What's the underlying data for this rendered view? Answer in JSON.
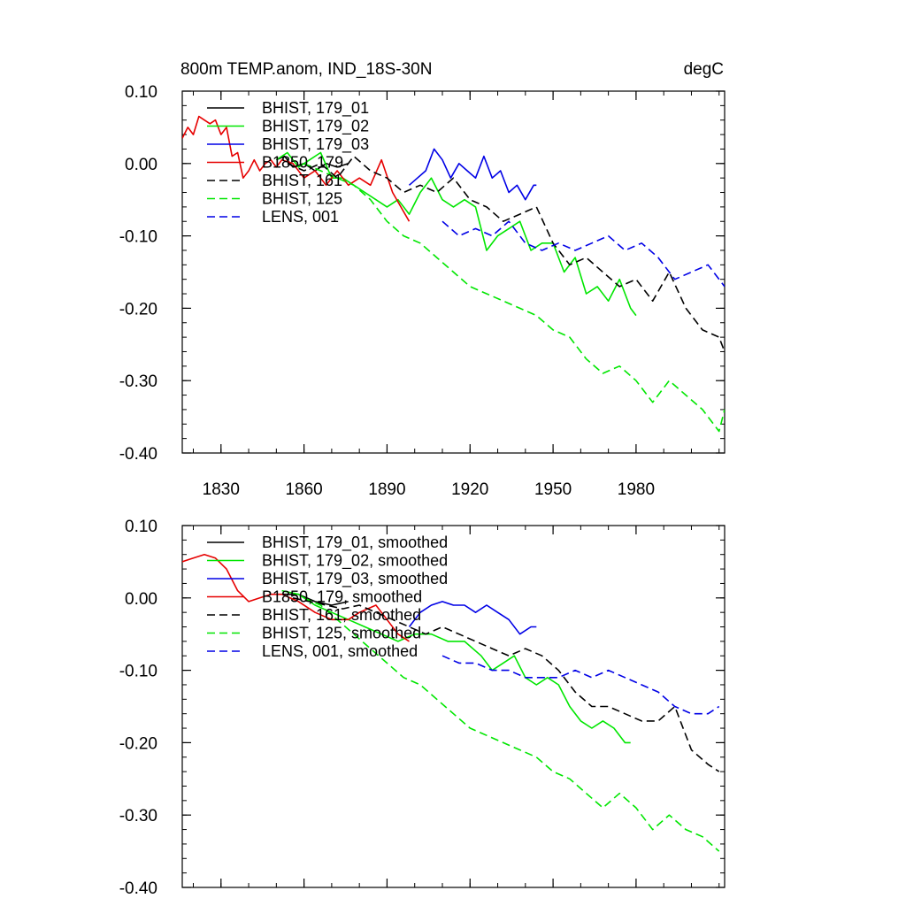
{
  "chart_data": [
    {
      "type": "line",
      "title": "800m TEMP.anom, IND_18S-30N",
      "units": "degC",
      "xlim": [
        1816,
        2012
      ],
      "ylim": [
        -0.4,
        0.1
      ],
      "yticks": [
        0.1,
        0.0,
        -0.1,
        -0.2,
        -0.3,
        -0.4
      ],
      "ytick_labels": [
        "0.10",
        "0.00",
        "-0.10",
        "-0.20",
        "-0.30",
        "-0.40"
      ],
      "xticks": [
        1830,
        1860,
        1890,
        1920,
        1950,
        1980
      ],
      "xtick_labels": [
        "1830",
        "1860",
        "1890",
        "1920",
        "1950",
        "1980"
      ],
      "grid": false,
      "legend_position": "top-left",
      "series": [
        {
          "name": "BHIST, 179_01",
          "color": "#000000",
          "dash": "solid",
          "x": [
            1850,
            1853,
            1856,
            1860,
            1864,
            1868,
            1872,
            1876
          ],
          "y": [
            0.005,
            0.01,
            -0.005,
            0.0,
            -0.01,
            0.0,
            -0.005,
            0.0
          ]
        },
        {
          "name": "BHIST, 179_02",
          "color": "#00e600",
          "dash": "solid",
          "x": [
            1850,
            1854,
            1858,
            1862,
            1866,
            1870,
            1874,
            1878,
            1882,
            1886,
            1890,
            1894,
            1898,
            1902,
            1906,
            1910,
            1914,
            1918,
            1922,
            1926,
            1930,
            1934,
            1938,
            1942,
            1946,
            1950,
            1954,
            1958,
            1962,
            1966,
            1970,
            1974,
            1978,
            1980
          ],
          "y": [
            0.005,
            0.015,
            -0.005,
            0.005,
            0.015,
            -0.02,
            -0.02,
            -0.03,
            -0.04,
            -0.05,
            -0.06,
            -0.05,
            -0.07,
            -0.04,
            -0.02,
            -0.05,
            -0.06,
            -0.05,
            -0.06,
            -0.12,
            -0.1,
            -0.09,
            -0.08,
            -0.12,
            -0.11,
            -0.11,
            -0.15,
            -0.13,
            -0.18,
            -0.17,
            -0.19,
            -0.16,
            -0.2,
            -0.21
          ]
        },
        {
          "name": "BHIST, 179_03",
          "color": "#0000e6",
          "dash": "solid",
          "x": [
            1898,
            1901,
            1904,
            1907,
            1910,
            1913,
            1916,
            1919,
            1922,
            1925,
            1928,
            1931,
            1934,
            1937,
            1940,
            1943,
            1944
          ],
          "y": [
            -0.03,
            -0.02,
            -0.01,
            0.02,
            0.005,
            -0.02,
            0.0,
            -0.01,
            -0.02,
            0.01,
            -0.02,
            -0.01,
            -0.04,
            -0.03,
            -0.05,
            -0.03,
            -0.03
          ]
        },
        {
          "name": "B1850, 179",
          "color": "#e60000",
          "dash": "solid",
          "x": [
            1816,
            1818,
            1820,
            1822,
            1824,
            1826,
            1828,
            1830,
            1832,
            1834,
            1836,
            1838,
            1840,
            1842,
            1844,
            1846,
            1848,
            1850,
            1852,
            1856,
            1860,
            1864,
            1868,
            1872,
            1876,
            1880,
            1884,
            1888,
            1892,
            1895,
            1898
          ],
          "y": [
            0.035,
            0.05,
            0.04,
            0.065,
            0.06,
            0.055,
            0.06,
            0.04,
            0.05,
            0.01,
            0.015,
            -0.02,
            -0.01,
            0.005,
            -0.01,
            0.0,
            0.005,
            -0.005,
            0.005,
            0.0,
            -0.02,
            -0.01,
            -0.03,
            -0.01,
            -0.03,
            -0.02,
            -0.03,
            0.005,
            -0.04,
            -0.06,
            -0.08
          ]
        },
        {
          "name": "BHIST, 161",
          "color": "#000000",
          "dash": "dashed",
          "x": [
            1854,
            1860,
            1866,
            1872,
            1878,
            1884,
            1890,
            1896,
            1902,
            1908,
            1914,
            1920,
            1926,
            1932,
            1938,
            1944,
            1950,
            1956,
            1962,
            1968,
            1974,
            1980,
            1986,
            1992,
            1998,
            2004,
            2010,
            2012
          ],
          "y": [
            0.0,
            -0.01,
            0.0,
            -0.02,
            0.01,
            -0.01,
            -0.02,
            -0.04,
            -0.03,
            -0.04,
            -0.02,
            -0.05,
            -0.06,
            -0.08,
            -0.07,
            -0.06,
            -0.11,
            -0.14,
            -0.13,
            -0.15,
            -0.17,
            -0.16,
            -0.19,
            -0.15,
            -0.2,
            -0.23,
            -0.24,
            -0.26
          ]
        },
        {
          "name": "BHIST, 125",
          "color": "#00e600",
          "dash": "dashed",
          "x": [
            1860,
            1866,
            1872,
            1878,
            1884,
            1890,
            1896,
            1902,
            1908,
            1914,
            1920,
            1926,
            1932,
            1938,
            1944,
            1950,
            1956,
            1962,
            1968,
            1974,
            1980,
            1986,
            1992,
            1998,
            2004,
            2010,
            2012
          ],
          "y": [
            0.0,
            -0.01,
            -0.02,
            -0.03,
            -0.05,
            -0.08,
            -0.1,
            -0.11,
            -0.13,
            -0.15,
            -0.17,
            -0.18,
            -0.19,
            -0.2,
            -0.21,
            -0.23,
            -0.24,
            -0.27,
            -0.29,
            -0.28,
            -0.3,
            -0.33,
            -0.3,
            -0.32,
            -0.34,
            -0.37,
            -0.34
          ]
        },
        {
          "name": "LENS, 001",
          "color": "#0000e6",
          "dash": "dashed",
          "x": [
            1910,
            1916,
            1922,
            1928,
            1934,
            1940,
            1946,
            1952,
            1958,
            1964,
            1970,
            1976,
            1982,
            1988,
            1994,
            2000,
            2006,
            2012
          ],
          "y": [
            -0.08,
            -0.1,
            -0.09,
            -0.1,
            -0.08,
            -0.11,
            -0.12,
            -0.11,
            -0.12,
            -0.11,
            -0.1,
            -0.12,
            -0.11,
            -0.13,
            -0.16,
            -0.15,
            -0.14,
            -0.17
          ]
        }
      ]
    },
    {
      "type": "line",
      "title": "",
      "xlim": [
        1816,
        2012
      ],
      "ylim": [
        -0.4,
        0.1
      ],
      "yticks": [
        0.1,
        0.0,
        -0.1,
        -0.2,
        -0.3,
        -0.4
      ],
      "ytick_labels": [
        "0.10",
        "0.00",
        "-0.10",
        "-0.20",
        "-0.30",
        "-0.40"
      ],
      "xticks": [
        1830,
        1860,
        1890,
        1920,
        1950,
        1980
      ],
      "grid": false,
      "legend_position": "top-left",
      "series": [
        {
          "name": "BHIST, 179_01, smoothed",
          "color": "#000000",
          "dash": "solid",
          "x": [
            1852,
            1858,
            1864,
            1870,
            1876
          ],
          "y": [
            0.005,
            0.005,
            -0.005,
            -0.01,
            -0.005
          ]
        },
        {
          "name": "BHIST, 179_02, smoothed",
          "color": "#00e600",
          "dash": "solid",
          "x": [
            1852,
            1858,
            1864,
            1870,
            1876,
            1882,
            1888,
            1894,
            1900,
            1906,
            1912,
            1918,
            1924,
            1928,
            1932,
            1936,
            1940,
            1944,
            1948,
            1952,
            1956,
            1960,
            1964,
            1968,
            1972,
            1976,
            1978
          ],
          "y": [
            0.01,
            0.005,
            -0.01,
            -0.02,
            -0.03,
            -0.04,
            -0.05,
            -0.06,
            -0.05,
            -0.05,
            -0.06,
            -0.06,
            -0.08,
            -0.1,
            -0.09,
            -0.08,
            -0.11,
            -0.12,
            -0.11,
            -0.12,
            -0.15,
            -0.17,
            -0.18,
            -0.17,
            -0.18,
            -0.2,
            -0.2
          ]
        },
        {
          "name": "BHIST, 179_03, smoothed",
          "color": "#0000e6",
          "dash": "solid",
          "x": [
            1898,
            1902,
            1906,
            1910,
            1914,
            1918,
            1922,
            1926,
            1930,
            1934,
            1938,
            1942,
            1944
          ],
          "y": [
            -0.04,
            -0.02,
            -0.01,
            -0.005,
            -0.01,
            -0.01,
            -0.02,
            -0.01,
            -0.02,
            -0.03,
            -0.05,
            -0.04,
            -0.04
          ]
        },
        {
          "name": "B1850, 179, smoothed",
          "color": "#e60000",
          "dash": "solid",
          "x": [
            1816,
            1820,
            1824,
            1828,
            1832,
            1836,
            1840,
            1844,
            1848,
            1852,
            1858,
            1864,
            1870,
            1876,
            1880,
            1886,
            1890,
            1894,
            1898
          ],
          "y": [
            0.05,
            0.055,
            0.06,
            0.055,
            0.04,
            0.01,
            -0.005,
            0.0,
            0.005,
            0.005,
            -0.005,
            -0.02,
            -0.03,
            -0.03,
            -0.02,
            -0.01,
            -0.03,
            -0.05,
            -0.06
          ]
        },
        {
          "name": "BHIST, 161, smoothed",
          "color": "#000000",
          "dash": "dashed",
          "x": [
            1856,
            1862,
            1868,
            1874,
            1880,
            1886,
            1892,
            1898,
            1904,
            1910,
            1916,
            1922,
            1928,
            1934,
            1940,
            1946,
            1952,
            1958,
            1964,
            1970,
            1976,
            1982,
            1988,
            1994,
            2000,
            2006,
            2010
          ],
          "y": [
            0.0,
            -0.005,
            -0.01,
            -0.015,
            -0.01,
            -0.02,
            -0.03,
            -0.04,
            -0.05,
            -0.04,
            -0.05,
            -0.06,
            -0.07,
            -0.08,
            -0.07,
            -0.08,
            -0.1,
            -0.13,
            -0.15,
            -0.15,
            -0.16,
            -0.17,
            -0.17,
            -0.15,
            -0.21,
            -0.23,
            -0.24
          ]
        },
        {
          "name": "BHIST, 125, smoothed",
          "color": "#00e600",
          "dash": "dashed",
          "x": [
            1860,
            1866,
            1872,
            1878,
            1884,
            1890,
            1896,
            1902,
            1908,
            1914,
            1920,
            1926,
            1932,
            1938,
            1944,
            1950,
            1956,
            1962,
            1968,
            1974,
            1980,
            1986,
            1992,
            1998,
            2004,
            2010
          ],
          "y": [
            0.0,
            -0.01,
            -0.03,
            -0.05,
            -0.07,
            -0.09,
            -0.11,
            -0.12,
            -0.14,
            -0.16,
            -0.18,
            -0.19,
            -0.2,
            -0.21,
            -0.22,
            -0.24,
            -0.25,
            -0.27,
            -0.29,
            -0.27,
            -0.29,
            -0.32,
            -0.3,
            -0.32,
            -0.33,
            -0.35
          ]
        },
        {
          "name": "LENS, 001, smoothed",
          "color": "#0000e6",
          "dash": "dashed",
          "x": [
            1910,
            1916,
            1922,
            1928,
            1934,
            1940,
            1946,
            1952,
            1958,
            1964,
            1970,
            1976,
            1982,
            1988,
            1994,
            2000,
            2006,
            2010
          ],
          "y": [
            -0.08,
            -0.09,
            -0.09,
            -0.1,
            -0.1,
            -0.11,
            -0.11,
            -0.11,
            -0.1,
            -0.11,
            -0.1,
            -0.11,
            -0.12,
            -0.13,
            -0.15,
            -0.16,
            -0.16,
            -0.15
          ]
        }
      ]
    }
  ]
}
